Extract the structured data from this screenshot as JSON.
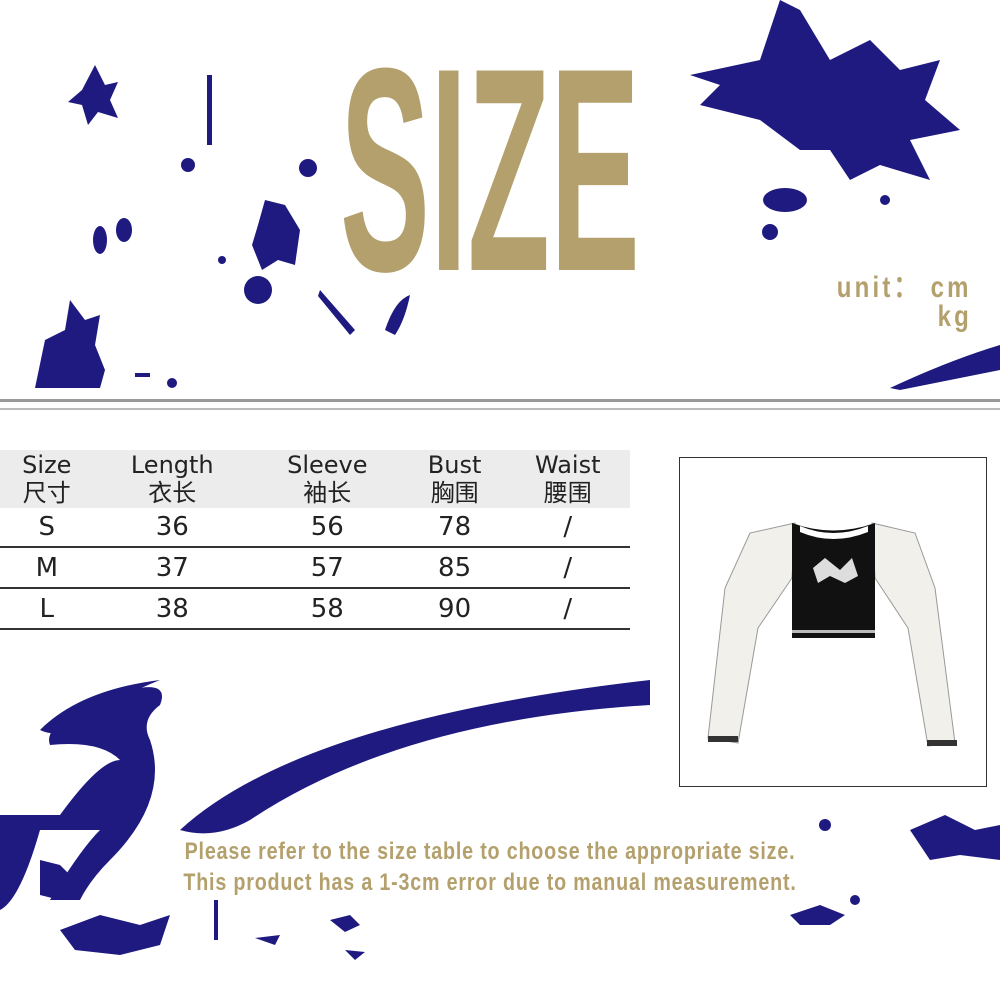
{
  "title": "SIZE",
  "unit": {
    "label": "unit：",
    "primary": "cm",
    "secondary": "kg"
  },
  "table": {
    "headers": [
      {
        "en": "Size",
        "zh": "尺寸"
      },
      {
        "en": "Length",
        "zh": "衣长"
      },
      {
        "en": "Sleeve",
        "zh": "袖长"
      },
      {
        "en": "Bust",
        "zh": "胸围"
      },
      {
        "en": "Waist",
        "zh": "腰围"
      }
    ],
    "rows": [
      [
        "S",
        "36",
        "56",
        "78",
        "/"
      ],
      [
        "M",
        "37",
        "57",
        "85",
        "/"
      ],
      [
        "L",
        "38",
        "58",
        "90",
        "/"
      ]
    ]
  },
  "notes": [
    "Please refer to the size table to choose the appropriate size.",
    "This product has a 1-3cm error due to manual measurement."
  ],
  "colors": {
    "gold": "#b3a06c",
    "navy": "#1f1a80",
    "header_bg": "#ececec"
  }
}
